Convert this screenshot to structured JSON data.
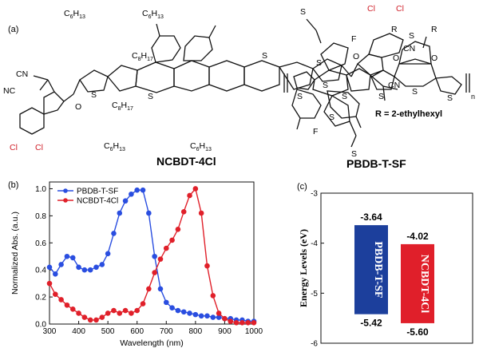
{
  "panel_labels": {
    "a": "(a)",
    "b": "(b)",
    "c": "(c)"
  },
  "molecules": {
    "acceptor": {
      "name": "NCBDT-4Cl",
      "labels": {
        "c6h13_base": "C",
        "c6h13_sub": "6",
        "c6h13_h": "H",
        "c6h13_hsub": "13",
        "c8h17_base": "C",
        "c8h17_sub": "8",
        "c8h17_h": "H",
        "c8h17_hsub": "17",
        "cl": "Cl",
        "cn": "CN",
        "nc": "NC",
        "o": "O",
        "s": "S"
      }
    },
    "donor": {
      "name": "PBDB-T-SF",
      "labels": {
        "s": "S",
        "f": "F",
        "o": "O",
        "r": "R",
        "n": "n"
      },
      "r_definition": "R = 2-ethylhexyl"
    }
  },
  "chart_data": [
    {
      "type": "line",
      "xlabel": "Wavelength (nm)",
      "ylabel": "Normalized Abs. (a.u.)",
      "xlim": [
        300,
        1000
      ],
      "ylim": [
        0,
        1.05
      ],
      "xticks": [
        300,
        400,
        500,
        600,
        700,
        800,
        900,
        1000
      ],
      "yticks": [
        0.0,
        0.2,
        0.4,
        0.6,
        0.8,
        1.0
      ],
      "legend_placement": "top-left",
      "series": [
        {
          "name": "PBDB-T-SF",
          "color": "#2a4ee0",
          "x": [
            300,
            320,
            340,
            360,
            380,
            400,
            420,
            440,
            460,
            480,
            500,
            520,
            540,
            560,
            580,
            600,
            620,
            640,
            660,
            680,
            700,
            720,
            740,
            760,
            780,
            800,
            820,
            840,
            860,
            880,
            900,
            920,
            940,
            960,
            980,
            1000
          ],
          "y": [
            0.42,
            0.37,
            0.44,
            0.5,
            0.49,
            0.42,
            0.4,
            0.4,
            0.42,
            0.44,
            0.52,
            0.67,
            0.82,
            0.91,
            0.96,
            0.99,
            0.99,
            0.82,
            0.5,
            0.26,
            0.16,
            0.12,
            0.1,
            0.09,
            0.08,
            0.07,
            0.06,
            0.06,
            0.05,
            0.05,
            0.04,
            0.04,
            0.03,
            0.03,
            0.02,
            0.02
          ]
        },
        {
          "name": "NCBDT-4Cl",
          "color": "#e0202a",
          "x": [
            300,
            320,
            340,
            360,
            380,
            400,
            420,
            440,
            460,
            480,
            500,
            520,
            540,
            560,
            580,
            600,
            620,
            640,
            660,
            680,
            700,
            720,
            740,
            760,
            780,
            800,
            820,
            840,
            860,
            880,
            900,
            920,
            940,
            960,
            980,
            1000
          ],
          "y": [
            0.3,
            0.22,
            0.18,
            0.14,
            0.11,
            0.08,
            0.05,
            0.03,
            0.03,
            0.05,
            0.08,
            0.1,
            0.08,
            0.1,
            0.08,
            0.1,
            0.15,
            0.26,
            0.38,
            0.48,
            0.56,
            0.62,
            0.7,
            0.83,
            0.95,
            1.0,
            0.82,
            0.43,
            0.21,
            0.08,
            0.04,
            0.02,
            0.01,
            0.01,
            0.01,
            0.01
          ]
        }
      ]
    },
    {
      "type": "bar",
      "ylabel": "Energy Levels (eV)",
      "ylim": [
        -6,
        -3
      ],
      "yticks": [
        -6,
        -5,
        -4,
        -3
      ],
      "series": [
        {
          "name": "PBDB-T-SF",
          "color": "#1c3f9c",
          "homo": -5.42,
          "lumo": -3.64,
          "top_label": "-3.64",
          "bottom_label": "-5.42"
        },
        {
          "name": "NCBDT-4Cl",
          "color": "#e01f2a",
          "homo": -5.6,
          "lumo": -4.02,
          "top_label": "-4.02",
          "bottom_label": "-5.60"
        }
      ]
    }
  ]
}
